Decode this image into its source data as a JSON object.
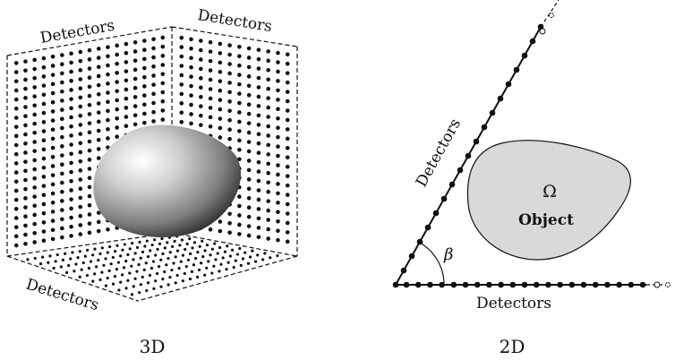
{
  "panel_3d": {
    "label_back_left": "Detectors",
    "label_back_right": "Detectors",
    "label_floor": "Detectors",
    "caption": "3D"
  },
  "panel_2d": {
    "label_slanted": "Detectors",
    "label_bottom": "Detectors",
    "object_symbol": "Ω",
    "object_label": "Object",
    "angle_symbol": "β",
    "caption": "2D"
  },
  "colors": {
    "ink": "#111111",
    "object_fill": "#d9d9d9",
    "sphere_light": "#ffffff",
    "sphere_dark": "#2a2a2a"
  }
}
